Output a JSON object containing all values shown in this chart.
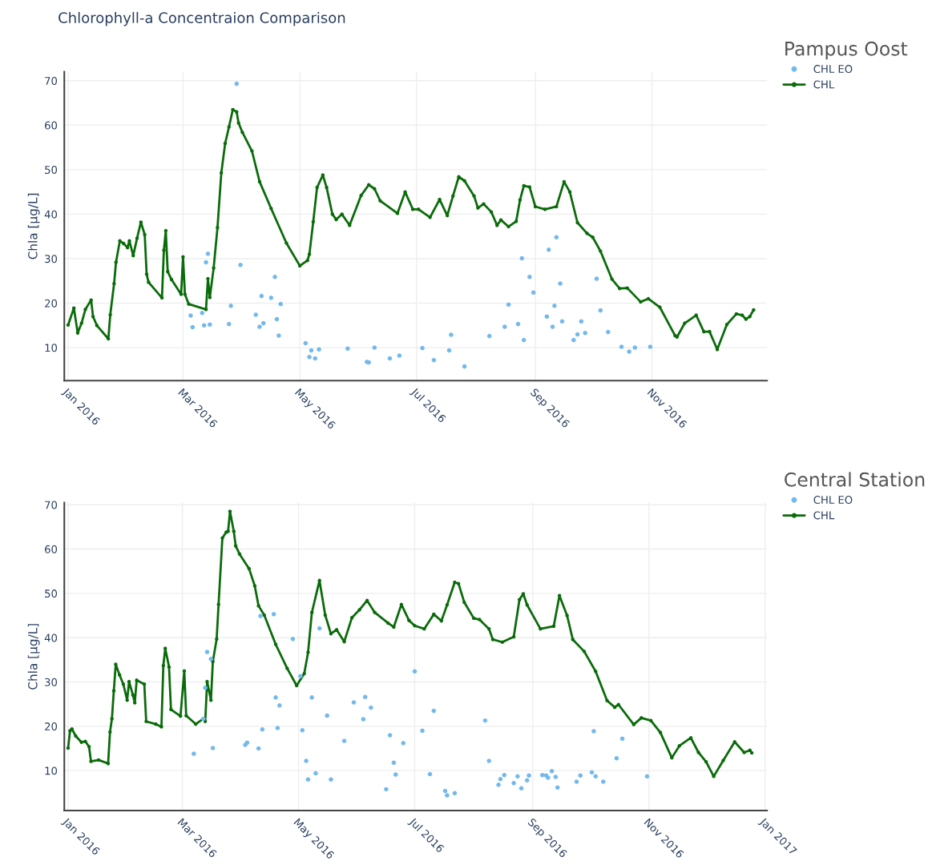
{
  "chart_data": [
    {
      "type": "line",
      "annotations": [
        "Chlorophyll-a Concentraion Comparison"
      ],
      "legend_title": "Pampus Oost",
      "ylabel": "Chla [µg/L]",
      "xlim": [
        "2015-12-30",
        "2016-12-31"
      ],
      "ylim": [
        2.6,
        72
      ],
      "yticks": [
        10,
        20,
        30,
        40,
        50,
        60,
        70
      ],
      "xticks": [
        {
          "value": "2016-01-01",
          "label": "Jan 2016"
        },
        {
          "value": "2016-03-01",
          "label": "Mar 2016"
        },
        {
          "value": "2016-05-01",
          "label": "May 2016"
        },
        {
          "value": "2016-07-01",
          "label": "Jul 2016"
        },
        {
          "value": "2016-09-01",
          "label": "Sep 2016"
        },
        {
          "value": "2016-11-01",
          "label": "Nov 2016"
        }
      ],
      "grid": true,
      "legend": "top right",
      "marker": "circle",
      "series": [
        {
          "name": "CHL EO",
          "type": "scatter",
          "color": "#74b9ec",
          "x": [
            "2016-03-05",
            "2016-03-06",
            "2016-03-11",
            "2016-03-12",
            "2016-03-13",
            "2016-03-14",
            "2016-03-15",
            "2016-03-25",
            "2016-03-26",
            "2016-03-29",
            "2016-03-31",
            "2016-04-08",
            "2016-04-10",
            "2016-04-11",
            "2016-04-12",
            "2016-04-16",
            "2016-04-18",
            "2016-04-19",
            "2016-04-21",
            "2016-04-20",
            "2016-05-04",
            "2016-05-06",
            "2016-05-07",
            "2016-05-09",
            "2016-05-11",
            "2016-05-26",
            "2016-06-05",
            "2016-06-06",
            "2016-06-09",
            "2016-06-17",
            "2016-06-22",
            "2016-07-04",
            "2016-07-10",
            "2016-07-18",
            "2016-07-19",
            "2016-07-26",
            "2016-08-08",
            "2016-08-16",
            "2016-08-18",
            "2016-08-23",
            "2016-08-25",
            "2016-08-26",
            "2016-08-29",
            "2016-08-31",
            "2016-09-07",
            "2016-09-08",
            "2016-09-10",
            "2016-09-11",
            "2016-09-12",
            "2016-09-14",
            "2016-09-15",
            "2016-09-21",
            "2016-09-23",
            "2016-09-25",
            "2016-09-27",
            "2016-10-03",
            "2016-10-05",
            "2016-10-09",
            "2016-10-16",
            "2016-10-20",
            "2016-10-23",
            "2016-10-31"
          ],
          "values": [
            17.2,
            14.6,
            17.8,
            15,
            29.2,
            31.1,
            15.2,
            15.3,
            19.4,
            69.3,
            28.6,
            17.4,
            14.7,
            21.6,
            15.5,
            21.2,
            25.9,
            16.4,
            19.8,
            12.7,
            11,
            7.9,
            9.4,
            7.6,
            9.6,
            9.8,
            6.8,
            6.7,
            10,
            7.6,
            8.2,
            9.9,
            7.2,
            9.4,
            12.9,
            5.8,
            12.6,
            14.7,
            19.7,
            15.3,
            30.1,
            11.7,
            25.9,
            22.4,
            17,
            32,
            14.7,
            19.4,
            34.8,
            24.4,
            15.9,
            11.7,
            13,
            15.9,
            13.3,
            25.5,
            18.4,
            13.5,
            10.2,
            9.1,
            10,
            10.2
          ]
        },
        {
          "name": "CHL",
          "type": "line",
          "color": "#0a6b0a",
          "x": [
            "2016-01-01",
            "2016-01-04",
            "2016-01-06",
            "2016-01-08",
            "2016-01-10",
            "2016-01-13",
            "2016-01-14",
            "2016-01-16",
            "2016-01-22",
            "2016-01-23",
            "2016-01-25",
            "2016-01-26",
            "2016-01-28",
            "2016-01-30",
            "2016-02-01",
            "2016-02-02",
            "2016-02-04",
            "2016-02-06",
            "2016-02-08",
            "2016-02-10",
            "2016-02-11",
            "2016-02-12",
            "2016-02-19",
            "2016-02-20",
            "2016-02-21",
            "2016-02-22",
            "2016-02-24",
            "2016-02-29",
            "2016-03-01",
            "2016-03-02",
            "2016-03-04",
            "2016-03-13",
            "2016-03-14",
            "2016-03-15",
            "2016-03-17",
            "2016-03-19",
            "2016-03-21",
            "2016-03-23",
            "2016-03-25",
            "2016-03-27",
            "2016-03-29",
            "2016-03-30",
            "2016-04-01",
            "2016-04-06",
            "2016-04-10",
            "2016-04-16",
            "2016-04-24",
            "2016-05-01",
            "2016-05-05",
            "2016-05-06",
            "2016-05-08",
            "2016-05-10",
            "2016-05-13",
            "2016-05-15",
            "2016-05-18",
            "2016-05-20",
            "2016-05-23",
            "2016-05-27",
            "2016-06-02",
            "2016-06-06",
            "2016-06-09",
            "2016-06-12",
            "2016-06-21",
            "2016-06-25",
            "2016-06-29",
            "2016-07-02",
            "2016-07-08",
            "2016-07-13",
            "2016-07-17",
            "2016-07-20",
            "2016-07-23",
            "2016-07-26",
            "2016-07-31",
            "2016-08-02",
            "2016-08-05",
            "2016-08-09",
            "2016-08-12",
            "2016-08-14",
            "2016-08-18",
            "2016-08-22",
            "2016-08-24",
            "2016-08-26",
            "2016-08-29",
            "2016-09-01",
            "2016-09-06",
            "2016-09-12",
            "2016-09-16",
            "2016-09-19",
            "2016-09-23",
            "2016-09-28",
            "2016-10-01",
            "2016-10-05",
            "2016-10-11",
            "2016-10-15",
            "2016-10-19",
            "2016-10-26",
            "2016-10-30",
            "2016-11-05",
            "2016-11-13",
            "2016-11-14",
            "2016-11-18",
            "2016-11-24",
            "2016-11-28",
            "2016-12-01",
            "2016-12-05",
            "2016-12-10",
            "2016-12-15",
            "2016-12-18",
            "2016-12-20",
            "2016-12-22",
            "2016-12-24"
          ],
          "values": [
            15.1,
            18.9,
            13.3,
            15.5,
            18.6,
            20.7,
            17,
            15,
            12,
            17.4,
            24.4,
            29.2,
            34,
            33.4,
            32.5,
            34,
            30.7,
            34.6,
            38.2,
            35.4,
            26.5,
            24.7,
            21.2,
            31.9,
            36.3,
            27.1,
            25.3,
            22,
            30.4,
            22,
            19.8,
            18.6,
            25.5,
            21.3,
            27.9,
            37,
            49.3,
            55.9,
            59.6,
            63.5,
            63,
            60.5,
            58.4,
            54.2,
            47.3,
            41.3,
            33.5,
            28.4,
            29.6,
            31,
            38.3,
            46,
            48.8,
            46,
            40,
            38.8,
            40,
            37.5,
            44.2,
            46.6,
            45.7,
            43,
            40.2,
            45,
            41.1,
            41.1,
            39.3,
            43.3,
            39.7,
            44.1,
            48.4,
            47.5,
            44.1,
            41.4,
            42.3,
            40.5,
            37.5,
            38.7,
            37.2,
            38.4,
            43.2,
            46.4,
            46.1,
            41.7,
            41.1,
            41.7,
            47.3,
            45,
            38.1,
            35.7,
            34.8,
            31.7,
            25.4,
            23.3,
            23.4,
            20.3,
            21,
            19.1,
            12.7,
            12.4,
            15.5,
            17.3,
            13.6,
            13.6,
            9.6,
            15.2,
            17.6,
            17.3,
            16.4,
            17,
            18.5
          ]
        }
      ]
    },
    {
      "type": "line",
      "legend_title": "Central Station",
      "ylabel": "Chla [µg/L]",
      "xlim": [
        "2015-12-30",
        "2017-01-02"
      ],
      "ylim": [
        1,
        70.5
      ],
      "yticks": [
        10,
        20,
        30,
        40,
        50,
        60,
        70
      ],
      "xticks": [
        {
          "value": "2016-01-01",
          "label": "Jan 2016"
        },
        {
          "value": "2016-03-01",
          "label": "Mar 2016"
        },
        {
          "value": "2016-05-01",
          "label": "May 2016"
        },
        {
          "value": "2016-07-01",
          "label": "Jul 2016"
        },
        {
          "value": "2016-09-01",
          "label": "Sep 2016"
        },
        {
          "value": "2016-11-01",
          "label": "Nov 2016"
        },
        {
          "value": "2017-01-01",
          "label": "Jan 2017"
        }
      ],
      "grid": true,
      "legend": "top right",
      "marker": "circle",
      "series": [
        {
          "name": "CHL EO",
          "type": "scatter",
          "color": "#74b9ec",
          "x": [
            "2016-03-07",
            "2016-03-12",
            "2016-03-13",
            "2016-03-14",
            "2016-03-16",
            "2016-03-17",
            "2016-04-03",
            "2016-04-04",
            "2016-04-10",
            "2016-04-11",
            "2016-04-12",
            "2016-04-18",
            "2016-04-19",
            "2016-04-20",
            "2016-04-21",
            "2016-04-28",
            "2016-05-02",
            "2016-05-03",
            "2016-05-05",
            "2016-05-06",
            "2016-05-08",
            "2016-05-10",
            "2016-05-12",
            "2016-05-16",
            "2016-05-18",
            "2016-05-25",
            "2016-05-30",
            "2016-06-04",
            "2016-06-05",
            "2016-06-08",
            "2016-06-16",
            "2016-06-18",
            "2016-06-20",
            "2016-06-21",
            "2016-06-25",
            "2016-07-01",
            "2016-07-05",
            "2016-07-09",
            "2016-07-11",
            "2016-07-17",
            "2016-07-18",
            "2016-07-22",
            "2016-08-07",
            "2016-08-09",
            "2016-08-14",
            "2016-08-15",
            "2016-08-17",
            "2016-08-22",
            "2016-08-24",
            "2016-08-26",
            "2016-08-29",
            "2016-08-30",
            "2016-09-06",
            "2016-09-08",
            "2016-09-09",
            "2016-09-11",
            "2016-09-13",
            "2016-09-14",
            "2016-09-24",
            "2016-09-26",
            "2016-10-02",
            "2016-10-03",
            "2016-10-04",
            "2016-10-08",
            "2016-10-15",
            "2016-10-18",
            "2016-10-31"
          ],
          "values": [
            13.8,
            21.7,
            28.7,
            36.8,
            35.2,
            15.1,
            15.8,
            16.3,
            15,
            44.9,
            19.3,
            45.3,
            26.5,
            19.6,
            24.7,
            39.7,
            31.3,
            19.1,
            12.2,
            8,
            26.5,
            9.4,
            42.1,
            22.4,
            8,
            16.7,
            25.4,
            21.6,
            26.6,
            24.2,
            5.8,
            18,
            11.8,
            9.1,
            16.2,
            32.4,
            19,
            9.2,
            23.5,
            5.4,
            4.4,
            4.9,
            21.3,
            12.2,
            6.8,
            8.1,
            9,
            7.2,
            8.7,
            6,
            7.8,
            8.9,
            9,
            8.9,
            8.4,
            9.9,
            8.6,
            6.2,
            7.5,
            8.9,
            9.6,
            18.9,
            8.7,
            7.5,
            12.8,
            17.2,
            8.7
          ]
        },
        {
          "name": "CHL",
          "type": "line",
          "color": "#0a6b0a",
          "x": [
            "2016-01-01",
            "2016-01-02",
            "2016-01-03",
            "2016-01-05",
            "2016-01-08",
            "2016-01-10",
            "2016-01-12",
            "2016-01-13",
            "2016-01-17",
            "2016-01-22",
            "2016-01-23",
            "2016-01-24",
            "2016-01-25",
            "2016-01-26",
            "2016-01-28",
            "2016-01-30",
            "2016-02-01",
            "2016-02-02",
            "2016-02-04",
            "2016-02-05",
            "2016-02-06",
            "2016-02-10",
            "2016-02-11",
            "2016-02-16",
            "2016-02-19",
            "2016-02-20",
            "2016-02-21",
            "2016-02-23",
            "2016-02-24",
            "2016-02-29",
            "2016-03-02",
            "2016-03-03",
            "2016-03-08",
            "2016-03-12",
            "2016-03-13",
            "2016-03-14",
            "2016-03-16",
            "2016-03-17",
            "2016-03-19",
            "2016-03-20",
            "2016-03-22",
            "2016-03-24",
            "2016-03-25",
            "2016-03-26",
            "2016-03-28",
            "2016-03-29",
            "2016-03-31",
            "2016-04-05",
            "2016-04-08",
            "2016-04-10",
            "2016-04-13",
            "2016-04-19",
            "2016-04-25",
            "2016-04-30",
            "2016-05-04",
            "2016-05-06",
            "2016-05-08",
            "2016-05-12",
            "2016-05-15",
            "2016-05-18",
            "2016-05-21",
            "2016-05-25",
            "2016-05-29",
            "2016-06-02",
            "2016-06-06",
            "2016-06-10",
            "2016-06-17",
            "2016-06-20",
            "2016-06-24",
            "2016-06-28",
            "2016-07-01",
            "2016-07-06",
            "2016-07-11",
            "2016-07-15",
            "2016-07-18",
            "2016-07-22",
            "2016-07-24",
            "2016-07-27",
            "2016-08-01",
            "2016-08-04",
            "2016-08-09",
            "2016-08-11",
            "2016-08-16",
            "2016-08-22",
            "2016-08-25",
            "2016-08-27",
            "2016-08-29",
            "2016-09-05",
            "2016-09-12",
            "2016-09-15",
            "2016-09-19",
            "2016-09-22",
            "2016-09-28",
            "2016-10-04",
            "2016-10-10",
            "2016-10-14",
            "2016-10-16",
            "2016-10-24",
            "2016-10-28",
            "2016-11-02",
            "2016-11-07",
            "2016-11-13",
            "2016-11-17",
            "2016-11-23",
            "2016-11-27",
            "2016-12-01",
            "2016-12-05",
            "2016-12-10",
            "2016-12-16",
            "2016-12-21",
            "2016-12-24",
            "2016-12-25"
          ],
          "values": [
            15.1,
            19,
            19.4,
            17.8,
            16.4,
            16.6,
            15.4,
            12.1,
            12.4,
            11.6,
            18.7,
            21.7,
            28,
            34,
            31.6,
            29.5,
            25.9,
            30.1,
            27.1,
            25.3,
            30.4,
            29.5,
            21.1,
            20.5,
            19.9,
            33.7,
            37.6,
            33.4,
            23.8,
            22.3,
            32.5,
            22.4,
            20.5,
            21.7,
            21.1,
            30.1,
            25.9,
            34.6,
            39.7,
            47.5,
            62.5,
            63.8,
            64,
            68.5,
            64,
            60.7,
            58.9,
            55.6,
            51.7,
            47.2,
            45.1,
            38.5,
            33.1,
            29.2,
            31.9,
            36.7,
            45.7,
            52.9,
            45.1,
            40.9,
            41.8,
            39.1,
            44.5,
            46.3,
            48.4,
            45.7,
            43.3,
            42.4,
            47.5,
            43.9,
            42.7,
            42,
            45.3,
            43.8,
            47.4,
            52.5,
            52.2,
            48,
            44.4,
            44.1,
            42,
            39.6,
            39,
            40.2,
            48.6,
            49.9,
            47.4,
            42,
            42.6,
            49.5,
            45,
            39.6,
            36.9,
            32.4,
            25.8,
            24.3,
            24.9,
            20.4,
            21.9,
            21.3,
            18.6,
            12.9,
            15.6,
            17.4,
            14.1,
            12,
            8.7,
            12.3,
            16.5,
            14.1,
            14.6,
            14
          ]
        }
      ]
    }
  ]
}
